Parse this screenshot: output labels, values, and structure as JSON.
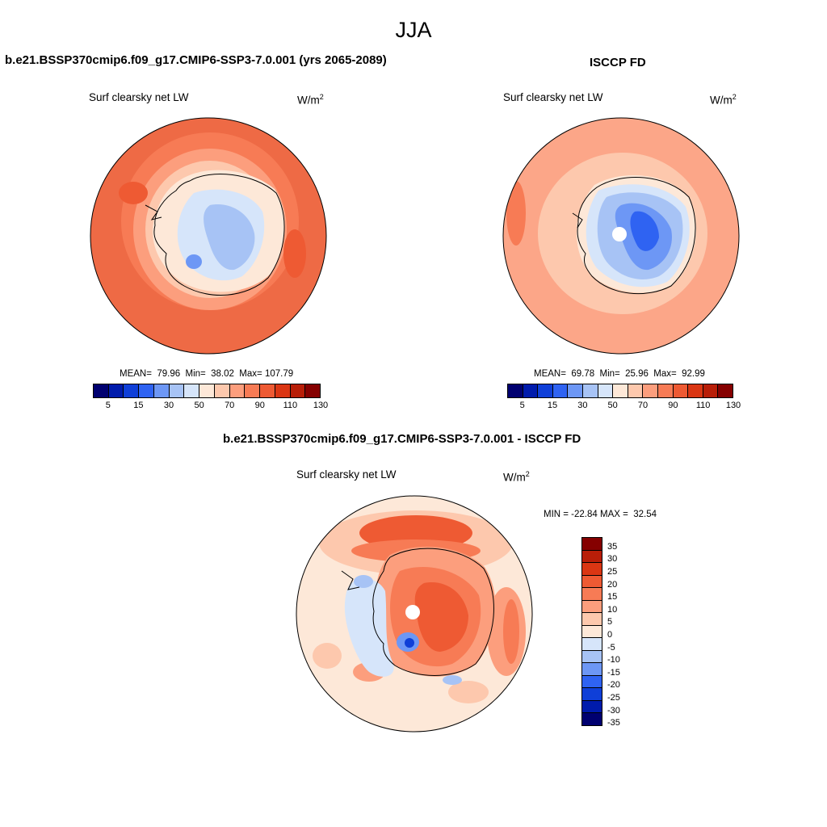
{
  "figure_title": "JJA",
  "panels": [
    {
      "title": "b.e21.BSSP370cmip6.f09_g17.CMIP6-SSP3-7.0.001 (yrs 2065-2089)",
      "variable": "Surf clearsky net LW",
      "units_base": "W/m",
      "units_exp": "2",
      "stats": "MEAN=  79.96  Min=  38.02  Max= 107.79"
    },
    {
      "title": "ISCCP FD",
      "variable": "Surf clearsky net LW",
      "units_base": "W/m",
      "units_exp": "2",
      "stats": "MEAN=  69.78  Min=  25.96  Max=  92.99"
    },
    {
      "title": "b.e21.BSSP370cmip6.f09_g17.CMIP6-SSP3-7.0.001 - ISCCP FD",
      "variable": "Surf clearsky net LW",
      "units_base": "W/m",
      "units_exp": "2",
      "stats": "MIN = -22.84 MAX =  32.54"
    }
  ],
  "colorbar_abs": {
    "colors": [
      "#000070",
      "#001bac",
      "#0f3fd8",
      "#2f63f2",
      "#6d97f5",
      "#a7c3f5",
      "#d6e5fa",
      "#fde8d8",
      "#fdc8ad",
      "#fc9e7d",
      "#f77b55",
      "#ee5a33",
      "#da3613",
      "#b81e08",
      "#850000"
    ],
    "tick_labels": [
      "5",
      "15",
      "30",
      "50",
      "70",
      "90",
      "110",
      "130"
    ]
  },
  "colorbar_diff": {
    "colors": [
      "#850000",
      "#b81e08",
      "#da3613",
      "#ee5a33",
      "#f77b55",
      "#fc9e7d",
      "#fdc8ad",
      "#fde8d8",
      "#d6e5fa",
      "#a7c3f5",
      "#6d97f5",
      "#2f63f2",
      "#0f3fd8",
      "#001bac",
      "#000070"
    ],
    "tick_labels": [
      "35",
      "30",
      "25",
      "20",
      "15",
      "10",
      "5",
      "0",
      "-5",
      "-10",
      "-15",
      "-20",
      "-25",
      "-30",
      "-35"
    ]
  },
  "colors": {
    "ocean_model": "#ee6a45",
    "ocean_obs": "#fca688",
    "ocean_diff": "#fde8d8",
    "coastline": "#000000"
  }
}
